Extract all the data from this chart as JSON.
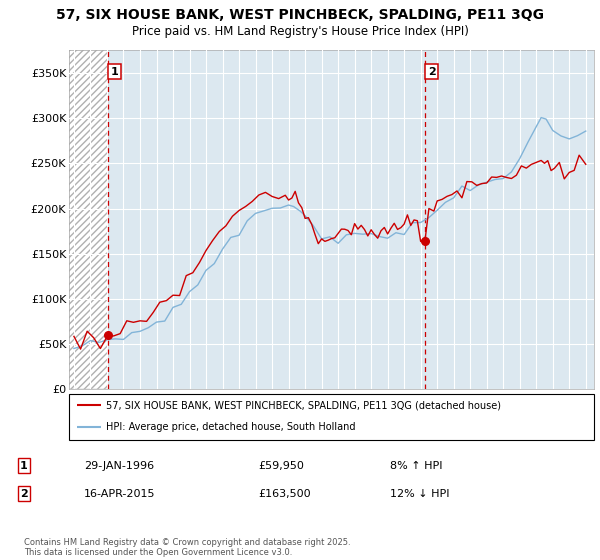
{
  "title_line1": "57, SIX HOUSE BANK, WEST PINCHBECK, SPALDING, PE11 3QG",
  "title_line2": "Price paid vs. HM Land Registry's House Price Index (HPI)",
  "sale1_date": "29-JAN-1996",
  "sale1_price": 59950,
  "sale1_hpi": "8% ↑ HPI",
  "sale2_date": "16-APR-2015",
  "sale2_price": 163500,
  "sale2_hpi": "12% ↓ HPI",
  "legend_line1": "57, SIX HOUSE BANK, WEST PINCHBECK, SPALDING, PE11 3QG (detached house)",
  "legend_line2": "HPI: Average price, detached house, South Holland",
  "footer": "Contains HM Land Registry data © Crown copyright and database right 2025.\nThis data is licensed under the Open Government Licence v3.0.",
  "hpi_color": "#82b4d8",
  "price_color": "#cc0000",
  "dashed_line_color": "#cc0000",
  "plot_bg_color": "#dce8f0",
  "ylim": [
    0,
    375000
  ],
  "yticks": [
    0,
    50000,
    100000,
    150000,
    200000,
    250000,
    300000,
    350000
  ],
  "ytick_labels": [
    "£0",
    "£50K",
    "£100K",
    "£150K",
    "£200K",
    "£250K",
    "£300K",
    "£350K"
  ],
  "sale1_x": 1996.08,
  "sale2_x": 2015.29,
  "xmin": 1993.7,
  "xmax": 2025.5
}
